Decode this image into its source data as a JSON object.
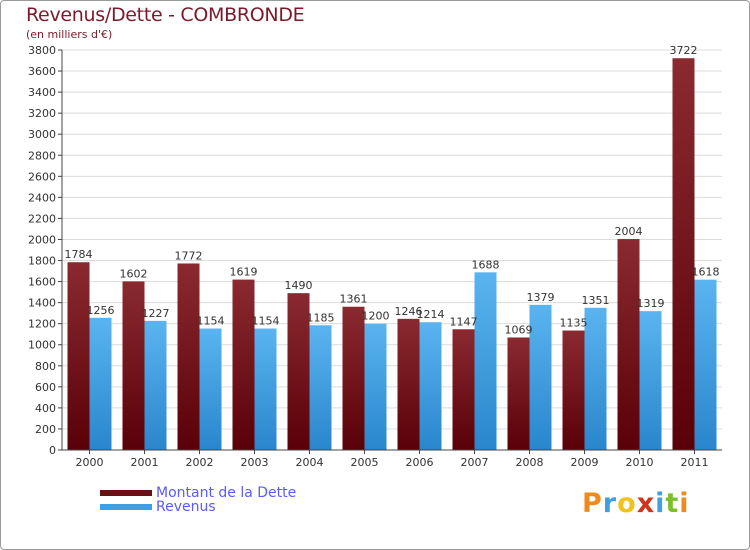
{
  "chart_data": {
    "type": "bar",
    "title": "Revenus/Dette - COMBRONDE",
    "subtitle": "(en milliers d'€)",
    "categories": [
      "2000",
      "2001",
      "2002",
      "2003",
      "2004",
      "2005",
      "2006",
      "2007",
      "2008",
      "2009",
      "2010",
      "2011"
    ],
    "series": [
      {
        "name": "Montant de la Dette",
        "color": "#6b0f16",
        "values": [
          1784,
          1602,
          1772,
          1619,
          1490,
          1361,
          1246,
          1147,
          1069,
          1135,
          2004,
          3722
        ]
      },
      {
        "name": "Revenus",
        "color": "#3f9fe0",
        "values": [
          1256,
          1227,
          1154,
          1154,
          1185,
          1200,
          1214,
          1688,
          1379,
          1351,
          1319,
          1618
        ]
      }
    ],
    "ylim": [
      0,
      3800
    ],
    "yticks": [
      0,
      200,
      400,
      600,
      800,
      1000,
      1200,
      1400,
      1600,
      1800,
      2000,
      2200,
      2400,
      2600,
      2800,
      3000,
      3200,
      3400,
      3600,
      3800
    ],
    "xlabel": "",
    "ylabel": ""
  },
  "legend": {
    "items": [
      {
        "label": "Montant de la Dette",
        "color": "#6b0f16"
      },
      {
        "label": "Revenus",
        "color": "#3f9fe0"
      }
    ]
  },
  "logo": {
    "letters": [
      "P",
      "r",
      "o",
      "x",
      "i",
      "t",
      "i"
    ],
    "colors": [
      "#f08a1c",
      "#3f9fe0",
      "#f0c21c",
      "#d0341c",
      "#3f9fe0",
      "#7bbf2a",
      "#f08a1c"
    ]
  }
}
